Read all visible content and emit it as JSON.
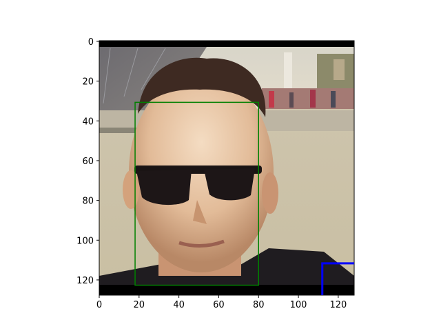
{
  "image": {
    "subject": "man-with-sunglasses-photo",
    "x_ticks": [
      "0",
      "20",
      "40",
      "60",
      "80",
      "100",
      "120"
    ],
    "y_ticks": [
      "0",
      "20",
      "40",
      "60",
      "80",
      "100",
      "120"
    ],
    "x_range": [
      0,
      128
    ],
    "y_range": [
      0,
      128
    ],
    "face_box": {
      "x0": 18,
      "y0": 31,
      "x1": 80,
      "y1": 123
    },
    "face_box_color": "#008000",
    "blue_marker": {
      "x0": 112,
      "y": 112
    },
    "blue_marker_color": "#0000ff"
  }
}
